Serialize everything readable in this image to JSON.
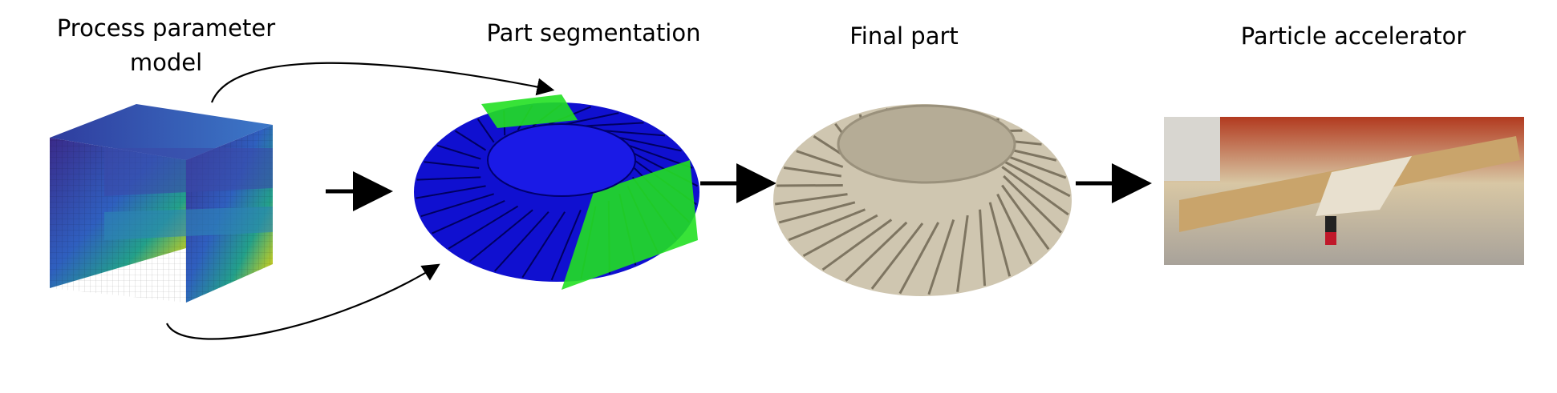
{
  "steps": [
    {
      "label_lines": [
        "Process parameter",
        "model"
      ]
    },
    {
      "label_lines": [
        "Part segmentation"
      ]
    },
    {
      "label_lines": [
        "Final part"
      ]
    },
    {
      "label_lines": [
        "Particle accelerator"
      ]
    }
  ]
}
